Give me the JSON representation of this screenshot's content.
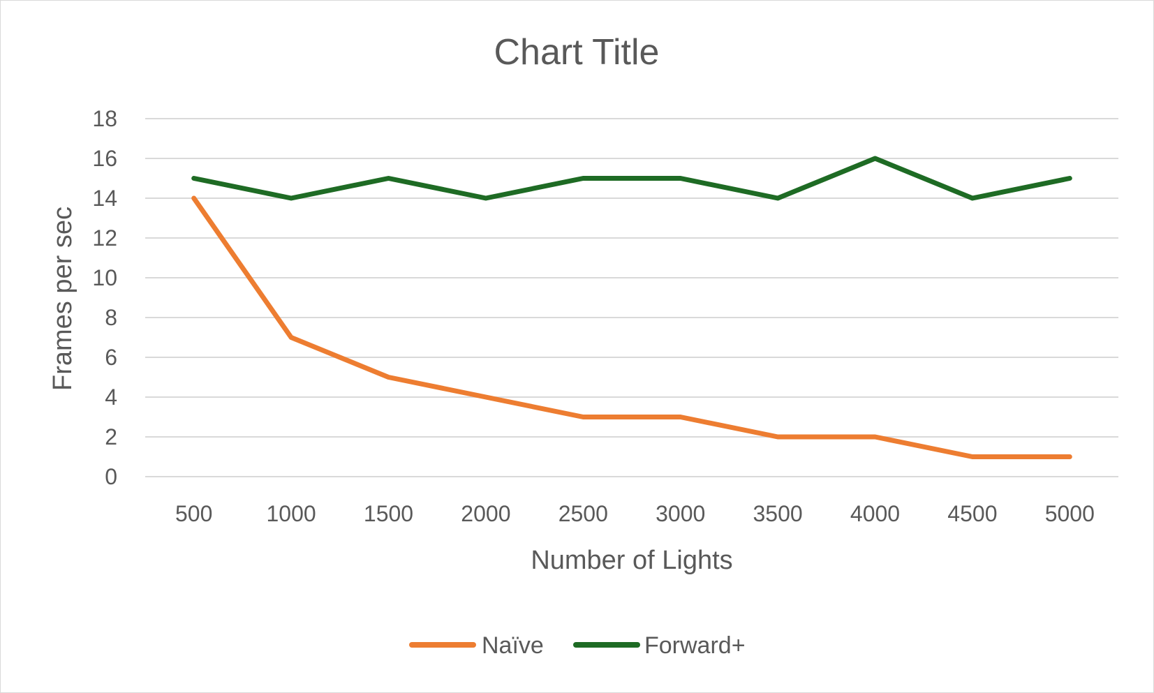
{
  "chart_data": {
    "type": "line",
    "title": "Chart Title",
    "xlabel": "Number of Lights",
    "ylabel": "Frames per sec",
    "categories": [
      "500",
      "1000",
      "1500",
      "2000",
      "2500",
      "3000",
      "3500",
      "4000",
      "4500",
      "5000"
    ],
    "ylim": [
      0,
      18
    ],
    "yticks": [
      "0",
      "2",
      "4",
      "6",
      "8",
      "10",
      "12",
      "14",
      "16",
      "18"
    ],
    "grid": true,
    "legend_position": "bottom",
    "series": [
      {
        "name": "Naïve",
        "color": "#ED7D31",
        "values": [
          14,
          7,
          5,
          4,
          3,
          3,
          2,
          2,
          1,
          1
        ]
      },
      {
        "name": "Forward+",
        "color": "#1E6B24",
        "values": [
          15,
          14,
          15,
          14,
          15,
          15,
          14,
          16,
          14,
          15
        ]
      }
    ]
  }
}
